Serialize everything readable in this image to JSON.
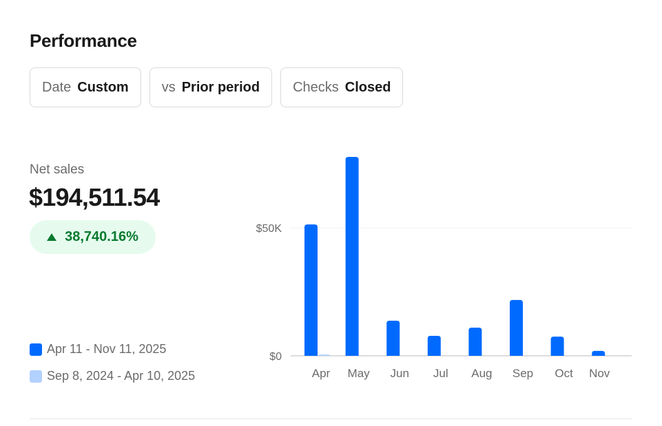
{
  "title": "Performance",
  "filters": [
    {
      "key": "Date",
      "value": "Custom"
    },
    {
      "key": "vs",
      "value": "Prior period"
    },
    {
      "key": "Checks",
      "value": "Closed"
    }
  ],
  "metric": {
    "label": "Net sales",
    "value": "$194,511.54",
    "change": "38,740.16%",
    "change_direction": "up",
    "change_icon": "triangle-up-icon"
  },
  "colors": {
    "current": "#006aff",
    "prior": "#b3d1ff",
    "positive_text": "#0a7a30",
    "positive_bg": "#e6fbee"
  },
  "chart_data": {
    "type": "bar",
    "categories": [
      "Apr",
      "May",
      "Jun",
      "Jul",
      "Aug",
      "Sep",
      "Oct",
      "Nov"
    ],
    "series": [
      {
        "name": "Apr 11 - Nov 11, 2025",
        "color": "#006aff",
        "values": [
          51300,
          77700,
          13700,
          7800,
          11000,
          21800,
          7500,
          1900
        ]
      },
      {
        "name": "Sep 8, 2024 - Apr 10, 2025",
        "color": "#b3d1ff",
        "values": [
          500,
          0,
          0,
          0,
          0,
          0,
          0,
          0
        ]
      }
    ],
    "yticks": [
      {
        "value": 0,
        "label": "$0"
      },
      {
        "value": 50000,
        "label": "$50K"
      }
    ],
    "ylim": [
      0,
      80000
    ],
    "grid": true,
    "legend": "left-bottom"
  }
}
